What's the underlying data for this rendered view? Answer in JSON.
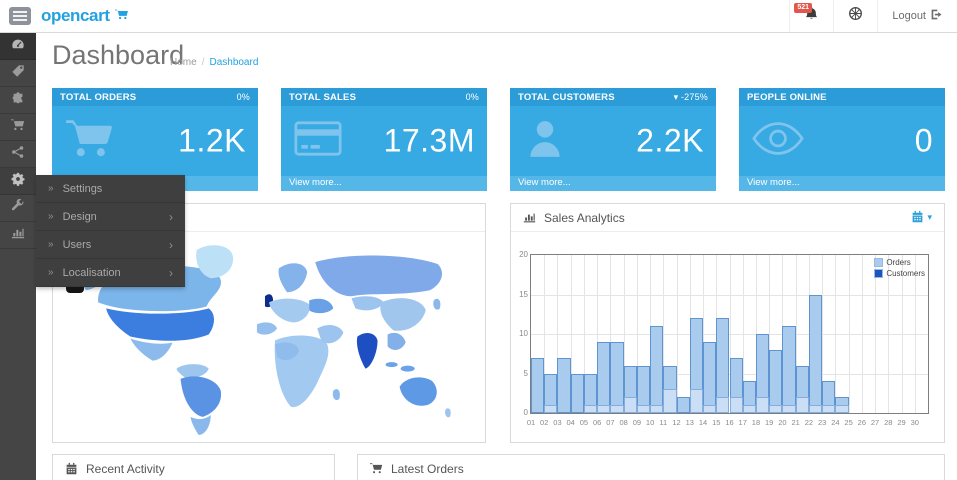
{
  "header": {
    "logo": "opencart",
    "badge_count": "521",
    "logout_label": "Logout"
  },
  "sidebar": {
    "icons": [
      "dashboard",
      "catalog",
      "extensions",
      "sales",
      "marketing",
      "system",
      "tools",
      "reports"
    ]
  },
  "flyout": {
    "prefix_icon": "»",
    "arrow_icon": "›",
    "items": [
      {
        "label": "Settings",
        "has_arrow": false
      },
      {
        "label": "Design",
        "has_arrow": true
      },
      {
        "label": "Users",
        "has_arrow": true
      },
      {
        "label": "Localisation",
        "has_arrow": true
      }
    ]
  },
  "page": {
    "title": "Dashboard",
    "breadcrumb_home": "Home",
    "breadcrumb_sep": "/",
    "breadcrumb_current": "Dashboard"
  },
  "tiles": [
    {
      "label": "TOTAL ORDERS",
      "percent": "0%",
      "value": "1.2K",
      "icon": "cart-icon",
      "view_more": ""
    },
    {
      "label": "TOTAL SALES",
      "percent": "0%",
      "value": "17.3M",
      "icon": "credit-card-icon",
      "view_more": "View more..."
    },
    {
      "label": "TOTAL CUSTOMERS",
      "percent": "▾ -275%",
      "value": "2.2K",
      "icon": "user-icon",
      "view_more": "View more..."
    },
    {
      "label": "PEOPLE ONLINE",
      "percent": "",
      "value": "0",
      "icon": "eye-icon",
      "view_more": "View more..."
    }
  ],
  "panels": {
    "sales_analytics": {
      "title": "Sales Analytics",
      "calendar_caret": "▾"
    },
    "recent_activity": {
      "title": "Recent Activity"
    },
    "latest_orders": {
      "title": "Latest Orders"
    }
  },
  "colors": {
    "accent": "#23a1e1",
    "tile_header": "#2b9cd8",
    "tile_body": "#37a9e3",
    "tile_footer": "#55b7e8",
    "badge": "#e2574c",
    "orders_fill": "#a9ccee",
    "customers_legend": "#1a56c0"
  },
  "chart_data": {
    "type": "bar",
    "title": "Sales Analytics",
    "categories": [
      "01",
      "02",
      "03",
      "04",
      "05",
      "06",
      "07",
      "08",
      "09",
      "10",
      "11",
      "12",
      "13",
      "14",
      "15",
      "16",
      "17",
      "18",
      "19",
      "20",
      "21",
      "22",
      "23",
      "24",
      "25",
      "26",
      "27",
      "28",
      "29",
      "30"
    ],
    "series": [
      {
        "name": "Orders",
        "values": [
          7,
          5,
          7,
          5,
          5,
          9,
          9,
          6,
          6,
          11,
          6,
          2,
          12,
          9,
          12,
          7,
          4,
          10,
          8,
          11,
          6,
          15,
          4,
          2,
          0,
          0,
          0,
          0,
          0,
          0
        ]
      },
      {
        "name": "Customers",
        "values": [
          0,
          1,
          0,
          0,
          1,
          1,
          1,
          2,
          1,
          1,
          3,
          0,
          3,
          1,
          2,
          2,
          1,
          2,
          1,
          1,
          2,
          1,
          1,
          1,
          0,
          0,
          0,
          0,
          0,
          0
        ]
      }
    ],
    "xlabel": "",
    "ylabel": "",
    "ylim": [
      0,
      20
    ],
    "yticks": [
      0,
      5,
      10,
      15,
      20
    ],
    "grid": true,
    "legend_position": "top-right"
  }
}
